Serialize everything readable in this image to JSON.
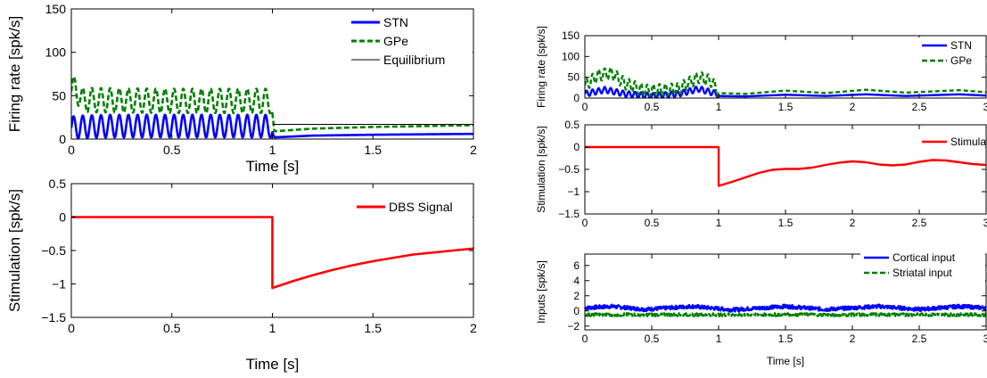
{
  "chart_data": [
    {
      "type": "line",
      "xlabel": "Time [s]",
      "ylabel": "Firing rate [spk/s]",
      "xlim": [
        0,
        2
      ],
      "ylim": [
        0,
        150
      ],
      "xticks": [
        "0",
        "0.5",
        "1",
        "1.5",
        "2"
      ],
      "yticks": [
        "0",
        "50",
        "100",
        "150"
      ],
      "legend": "top-right",
      "grid": false,
      "series": [
        {
          "name": "STN",
          "color": "#0000ff",
          "style": "solid",
          "x": [
            0,
            0.05,
            0.2,
            0.5,
            0.8,
            0.99,
            1.0,
            1.01,
            1.2,
            1.5,
            2.0
          ],
          "y": [
            13,
            14,
            15,
            15,
            15,
            15,
            8,
            2,
            4,
            5,
            6
          ],
          "osc": {
            "until": 1.0,
            "amplitude": 13,
            "frequency": 22
          }
        },
        {
          "name": "GPe",
          "color": "#008000",
          "style": "dashed",
          "x": [
            0,
            0.02,
            0.05,
            0.5,
            0.99,
            1.0,
            1.01,
            1.2,
            1.5,
            2.0
          ],
          "y": [
            55,
            60,
            45,
            44,
            44,
            30,
            9,
            12,
            14,
            16
          ],
          "osc": {
            "until": 1.0,
            "amplitude": 14,
            "frequency": 22
          }
        },
        {
          "name": "Equilibrium",
          "color": "#000000",
          "style": "thin",
          "x": [
            1.0,
            2.0
          ],
          "y": [
            17,
            17
          ]
        }
      ]
    },
    {
      "type": "line",
      "xlabel": "Time [s]",
      "ylabel": "Stimulation [spk/s]",
      "xlim": [
        0,
        2
      ],
      "ylim": [
        -1.5,
        0.5
      ],
      "xticks": [
        "0",
        "0.5",
        "1",
        "1.5",
        "2"
      ],
      "yticks": [
        "−1.5",
        "−1",
        "−0.5",
        "0",
        "0.5"
      ],
      "legend": "top-right",
      "series": [
        {
          "name": "DBS Signal",
          "color": "#ff0000",
          "style": "solid",
          "x": [
            0,
            1.0,
            1.0,
            1.05,
            1.1,
            1.2,
            1.3,
            1.4,
            1.5,
            1.6,
            1.7,
            1.8,
            1.9,
            2.0
          ],
          "y": [
            0,
            0,
            -1.06,
            -1.01,
            -0.96,
            -0.87,
            -0.79,
            -0.72,
            -0.66,
            -0.61,
            -0.56,
            -0.53,
            -0.5,
            -0.47
          ]
        }
      ]
    },
    {
      "type": "line",
      "ylabel": "Firing rate [spk/s]",
      "xlim": [
        0,
        3
      ],
      "ylim": [
        0,
        150
      ],
      "xticks": [
        "0",
        "0.5",
        "1",
        "1.5",
        "2",
        "2.5",
        "3"
      ],
      "yticks": [
        "0",
        "50",
        "100",
        "150"
      ],
      "legend": "top-right",
      "series": [
        {
          "name": "STN",
          "color": "#0000ff",
          "style": "solid",
          "x": [
            0,
            0.15,
            0.3,
            0.5,
            0.7,
            0.85,
            0.99,
            1.0,
            1.2,
            1.5,
            1.8,
            2.1,
            2.4,
            2.8,
            3.0
          ],
          "y": [
            10,
            20,
            10,
            5,
            10,
            22,
            10,
            5,
            4,
            8,
            5,
            9,
            5,
            9,
            6
          ],
          "osc": {
            "until": 1.0,
            "amplitude": 7,
            "frequency": 22
          }
        },
        {
          "name": "GPe",
          "color": "#008000",
          "style": "dashed",
          "x": [
            0,
            0.1,
            0.2,
            0.3,
            0.45,
            0.7,
            0.85,
            0.95,
            1.0,
            1.2,
            1.5,
            1.8,
            2.1,
            2.4,
            2.8,
            3.0
          ],
          "y": [
            30,
            55,
            60,
            35,
            18,
            22,
            50,
            40,
            12,
            10,
            18,
            12,
            20,
            13,
            19,
            14
          ],
          "osc": {
            "until": 1.0,
            "amplitude": 14,
            "frequency": 22
          }
        }
      ]
    },
    {
      "type": "line",
      "ylabel": "Stimulation [spk/s]",
      "xlim": [
        0,
        3
      ],
      "ylim": [
        -1.5,
        0.5
      ],
      "xticks": [
        "0",
        "0.5",
        "1",
        "1.5",
        "2",
        "2.5",
        "3"
      ],
      "yticks": [
        "−1.5",
        "−1",
        "−0.5",
        "0",
        "0.5"
      ],
      "legend": "top-right",
      "series": [
        {
          "name": "Stimulation",
          "color": "#ff0000",
          "style": "solid",
          "x": [
            0,
            1.0,
            1.0,
            1.1,
            1.2,
            1.3,
            1.4,
            1.5,
            1.6,
            1.7,
            1.8,
            1.9,
            2.0,
            2.1,
            2.2,
            2.3,
            2.4,
            2.5,
            2.6,
            2.7,
            2.8,
            2.9,
            3.0
          ],
          "y": [
            0,
            0,
            -0.87,
            -0.78,
            -0.68,
            -0.58,
            -0.51,
            -0.49,
            -0.49,
            -0.46,
            -0.4,
            -0.35,
            -0.32,
            -0.34,
            -0.39,
            -0.41,
            -0.39,
            -0.33,
            -0.29,
            -0.3,
            -0.34,
            -0.38,
            -0.4
          ]
        }
      ]
    },
    {
      "type": "line",
      "xlabel": "Time [s]",
      "ylabel": "Inputs [spk/s]",
      "xlim": [
        0,
        3
      ],
      "ylim": [
        -2.5,
        7.5
      ],
      "xticks": [
        "0",
        "0.5",
        "1",
        "1.5",
        "2",
        "2.5",
        "3"
      ],
      "yticks": [
        "−2",
        "0",
        "2",
        "4",
        "6"
      ],
      "legend": "top-right",
      "series": [
        {
          "name": "Cortical input",
          "color": "#0000ff",
          "style": "solid",
          "x": [
            0,
            0.2,
            0.45,
            0.8,
            1.1,
            1.5,
            1.8,
            2.2,
            2.5,
            2.8,
            3.0
          ],
          "y": [
            0.4,
            0.6,
            0.2,
            0.6,
            0.15,
            0.6,
            0.2,
            0.6,
            0.2,
            0.6,
            0.4
          ],
          "noise": 0.25
        },
        {
          "name": "Striatal input",
          "color": "#008000",
          "style": "dashed",
          "x": [
            0,
            3.0
          ],
          "y": [
            -0.5,
            -0.5
          ],
          "noise": 0.2
        }
      ]
    }
  ]
}
